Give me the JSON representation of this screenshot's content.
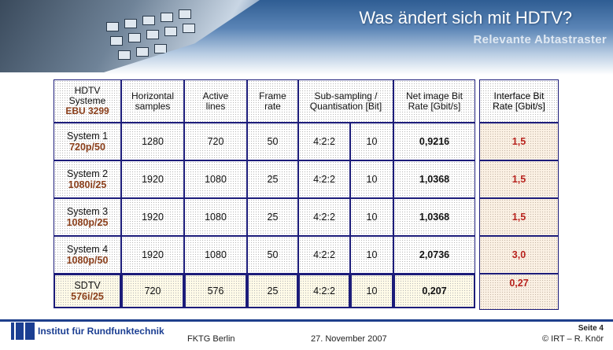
{
  "header": {
    "title": "Was ändert sich mit HDTV?",
    "subtitle": "Relevante Abtastraster"
  },
  "table": {
    "headers": {
      "system_line1": "HDTV",
      "system_line2": "Systeme",
      "system_line3": "EBU 3299",
      "horizontal_line1": "Horizontal",
      "horizontal_line2": "samples",
      "active_line1": "Active",
      "active_line2": "lines",
      "frame_line1": "Frame",
      "frame_line2": "rate",
      "sub_line1": "Sub-sampling /",
      "sub_line2": "Quantisation [Bit]",
      "net_line1": "Net image Bit",
      "net_line2": "Rate [Gbit/s]",
      "interface_line1": "Interface Bit",
      "interface_line2": "Rate [Gbit/s]"
    },
    "rows": [
      {
        "name": "System 1",
        "format": "720p/50",
        "horizontal": "1280",
        "active": "720",
        "frame": "50",
        "subsampling": "4:2:2",
        "quant": "10",
        "net": "0,9216",
        "interface": "1,5"
      },
      {
        "name": "System 2",
        "format": "1080i/25",
        "horizontal": "1920",
        "active": "1080",
        "frame": "25",
        "subsampling": "4:2:2",
        "quant": "10",
        "net": "1,0368",
        "interface": "1,5"
      },
      {
        "name": "System 3",
        "format": "1080p/25",
        "horizontal": "1920",
        "active": "1080",
        "frame": "25",
        "subsampling": "4:2:2",
        "quant": "10",
        "net": "1,0368",
        "interface": "1,5"
      },
      {
        "name": "System 4",
        "format": "1080p/50",
        "horizontal": "1920",
        "active": "1080",
        "frame": "50",
        "subsampling": "4:2:2",
        "quant": "10",
        "net": "2,0736",
        "interface": "3,0"
      },
      {
        "name": "SDTV",
        "format": "576i/25",
        "horizontal": "720",
        "active": "576",
        "frame": "25",
        "subsampling": "4:2:2",
        "quant": "10",
        "net": "0,207",
        "interface": "0,27"
      }
    ]
  },
  "footer": {
    "logo_text": "IRT",
    "institute": "Institut für Rundfunktechnik",
    "event": "FKTG Berlin",
    "date": "27. November 2007",
    "page": "Seite 4",
    "copyright": "© IRT – R. Knör"
  },
  "colors": {
    "accent_blue": "#1c1c7a",
    "net_rate_red": "#c0202a",
    "format_brown": "#8b3f1b"
  }
}
